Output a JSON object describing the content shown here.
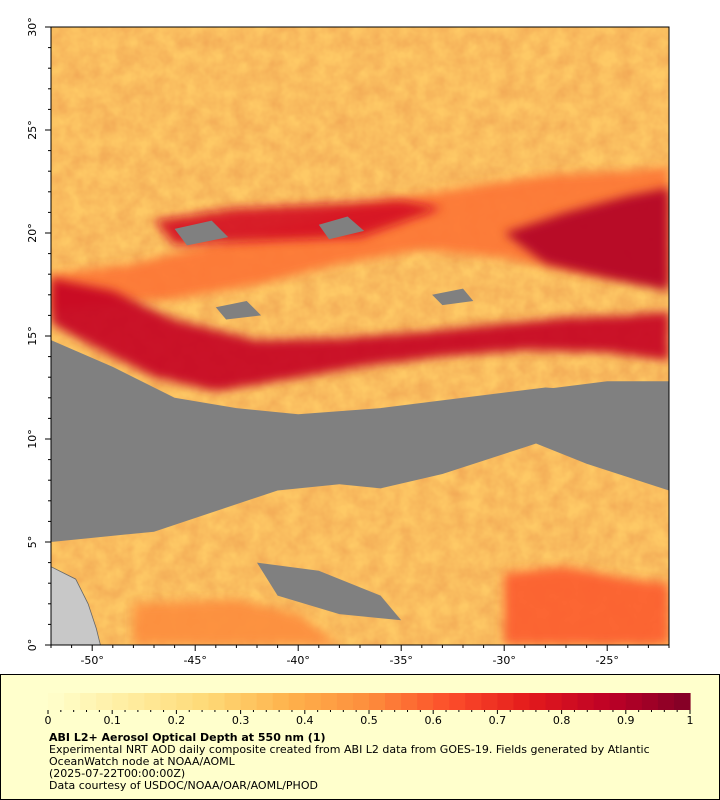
{
  "map": {
    "lat_labels": [
      "0°",
      "5°",
      "10°",
      "15°",
      "20°",
      "25°",
      "30°"
    ],
    "lat_values": [
      0,
      5,
      10,
      15,
      20,
      25,
      30
    ],
    "lon_labels": [
      "-50°",
      "-45°",
      "-40°",
      "-35°",
      "-30°",
      "-25°"
    ],
    "lon_values": [
      -50,
      -45,
      -40,
      -35,
      -30,
      -25
    ],
    "lon_range": [
      -52,
      -22
    ],
    "lat_range": [
      0,
      30
    ],
    "no_data_color": "#808080",
    "land_color": "#c8c8c8",
    "aerosol_bands": [
      {
        "level": 0.55,
        "points": [
          [
            -52,
            18
          ],
          [
            -48,
            18.5
          ],
          [
            -44,
            19.5
          ],
          [
            -40,
            20.5
          ],
          [
            -36,
            21.5
          ],
          [
            -32,
            22.2
          ],
          [
            -28,
            22.8
          ],
          [
            -24,
            23
          ],
          [
            -22,
            23.2
          ],
          [
            -22,
            17.5
          ],
          [
            -26,
            18
          ],
          [
            -30,
            18.8
          ],
          [
            -34,
            19.2
          ],
          [
            -38,
            18.5
          ],
          [
            -42,
            17.5
          ],
          [
            -46,
            16.8
          ],
          [
            -50,
            16.5
          ],
          [
            -52,
            16.2
          ]
        ]
      },
      {
        "level": 0.85,
        "points": [
          [
            -52,
            17.8
          ],
          [
            -49,
            17.2
          ],
          [
            -46,
            15.8
          ],
          [
            -42,
            14.8
          ],
          [
            -38,
            14.9
          ],
          [
            -34,
            15.2
          ],
          [
            -30,
            15.6
          ],
          [
            -27,
            15.9
          ],
          [
            -24,
            16
          ],
          [
            -22,
            16.2
          ],
          [
            -22,
            13.8
          ],
          [
            -25,
            14.2
          ],
          [
            -29,
            14.3
          ],
          [
            -33,
            14.0
          ],
          [
            -37,
            13.5
          ],
          [
            -41,
            12.8
          ],
          [
            -44,
            12.3
          ],
          [
            -47,
            13.0
          ],
          [
            -50,
            14.5
          ],
          [
            -52,
            15.6
          ]
        ]
      },
      {
        "level": 0.9,
        "points": [
          [
            -30,
            20
          ],
          [
            -27,
            21
          ],
          [
            -24,
            21.8
          ],
          [
            -22,
            22.2
          ],
          [
            -22,
            17.2
          ],
          [
            -25,
            17.8
          ],
          [
            -28,
            18.5
          ]
        ]
      },
      {
        "level": 0.8,
        "points": [
          [
            -47,
            20.6
          ],
          [
            -43,
            21.2
          ],
          [
            -39,
            21.4
          ],
          [
            -35,
            21.6
          ],
          [
            -33,
            21.2
          ],
          [
            -37,
            19.8
          ],
          [
            -42,
            19.6
          ],
          [
            -46,
            19.4
          ]
        ]
      },
      {
        "level": 0.6,
        "points": [
          [
            -30,
            3.5
          ],
          [
            -27,
            3.8
          ],
          [
            -24,
            3.2
          ],
          [
            -22,
            3.0
          ],
          [
            -22,
            0
          ],
          [
            -30,
            0
          ]
        ]
      },
      {
        "level": 0.5,
        "points": [
          [
            -48,
            2
          ],
          [
            -43,
            2.2
          ],
          [
            -40,
            1.5
          ],
          [
            -38,
            0
          ],
          [
            -48,
            0
          ]
        ]
      }
    ],
    "nodata_regions": [
      {
        "points": [
          [
            -52,
            14.8
          ],
          [
            -49,
            13.5
          ],
          [
            -46,
            12
          ],
          [
            -43,
            11.5
          ],
          [
            -40,
            11.2
          ],
          [
            -36,
            11.5
          ],
          [
            -32,
            12
          ],
          [
            -28,
            12.5
          ],
          [
            -25,
            12.3
          ],
          [
            -22,
            12.0
          ],
          [
            -22,
            10.8
          ],
          [
            -26,
            10.6
          ],
          [
            -29,
            9.6
          ],
          [
            -33,
            8.3
          ],
          [
            -36,
            7.6
          ],
          [
            -38,
            7.8
          ],
          [
            -41,
            7.5
          ],
          [
            -44,
            6.5
          ],
          [
            -47,
            5.5
          ],
          [
            -50,
            5.2
          ],
          [
            -52,
            5.0
          ],
          [
            -52,
            11.5
          ]
        ]
      },
      {
        "points": [
          [
            -29,
            12.3
          ],
          [
            -25,
            12.8
          ],
          [
            -22,
            12.8
          ],
          [
            -22,
            7.5
          ],
          [
            -26,
            8.8
          ],
          [
            -29,
            10
          ]
        ]
      },
      {
        "points": [
          [
            -42,
            4
          ],
          [
            -39,
            3.6
          ],
          [
            -36,
            2.4
          ],
          [
            -35,
            1.2
          ],
          [
            -38,
            1.5
          ],
          [
            -41,
            2.4
          ]
        ]
      },
      {
        "points": [
          [
            -46,
            20.2
          ],
          [
            -44.2,
            20.6
          ],
          [
            -43.4,
            19.8
          ],
          [
            -45.4,
            19.4
          ]
        ]
      },
      {
        "points": [
          [
            -39,
            20.4
          ],
          [
            -37.6,
            20.8
          ],
          [
            -36.8,
            20.1
          ],
          [
            -38.5,
            19.7
          ]
        ]
      },
      {
        "points": [
          [
            -44,
            16.4
          ],
          [
            -42.5,
            16.7
          ],
          [
            -41.8,
            16
          ],
          [
            -43.5,
            15.8
          ]
        ]
      },
      {
        "points": [
          [
            -33.5,
            17
          ],
          [
            -32,
            17.3
          ],
          [
            -31.5,
            16.7
          ],
          [
            -33,
            16.5
          ]
        ]
      },
      {
        "points": [
          [
            -29.5,
            11.6
          ],
          [
            -28,
            12
          ],
          [
            -27.2,
            11.2
          ],
          [
            -29,
            11
          ]
        ]
      },
      {
        "points": [
          [
            -48,
            8.6
          ],
          [
            -46.5,
            9
          ],
          [
            -46,
            8.2
          ],
          [
            -47.6,
            8
          ]
        ]
      },
      {
        "points": [
          [
            -35,
            9.6
          ],
          [
            -33.5,
            9.9
          ],
          [
            -33,
            9.2
          ],
          [
            -34.6,
            9
          ]
        ]
      }
    ],
    "land_region": {
      "points": [
        [
          -52,
          3.8
        ],
        [
          -50.8,
          3.2
        ],
        [
          -50.2,
          2.0
        ],
        [
          -49.8,
          0.8
        ],
        [
          -49.6,
          0
        ],
        [
          -52,
          0
        ]
      ]
    }
  },
  "legend": {
    "tick_labels": [
      "0",
      "0.1",
      "0.2",
      "0.3",
      "0.4",
      "0.5",
      "0.6",
      "0.7",
      "0.8",
      "0.9",
      "1"
    ],
    "tick_values": [
      0,
      0.1,
      0.2,
      0.3,
      0.4,
      0.5,
      0.6,
      0.7,
      0.8,
      0.9,
      1
    ],
    "value_range": [
      0,
      1
    ],
    "colormap": [
      "#ffffcc",
      "#ffeda0",
      "#fed976",
      "#feb24c",
      "#fd8d3c",
      "#fc4e2a",
      "#e31a1c",
      "#bd0026",
      "#800026"
    ],
    "title": "ABI L2+ Aerosol Optical Depth at 550 nm (1)",
    "description": "Experimental NRT AOD daily composite created from ABI L2 data from GOES-19. Fields generated by Atlantic OceanWatch node at NOAA/AOML",
    "date": "(2025-07-22T00:00:00Z)",
    "credit": "Data courtesy of USDOC/NOAA/OAR/AOML/PHOD"
  }
}
